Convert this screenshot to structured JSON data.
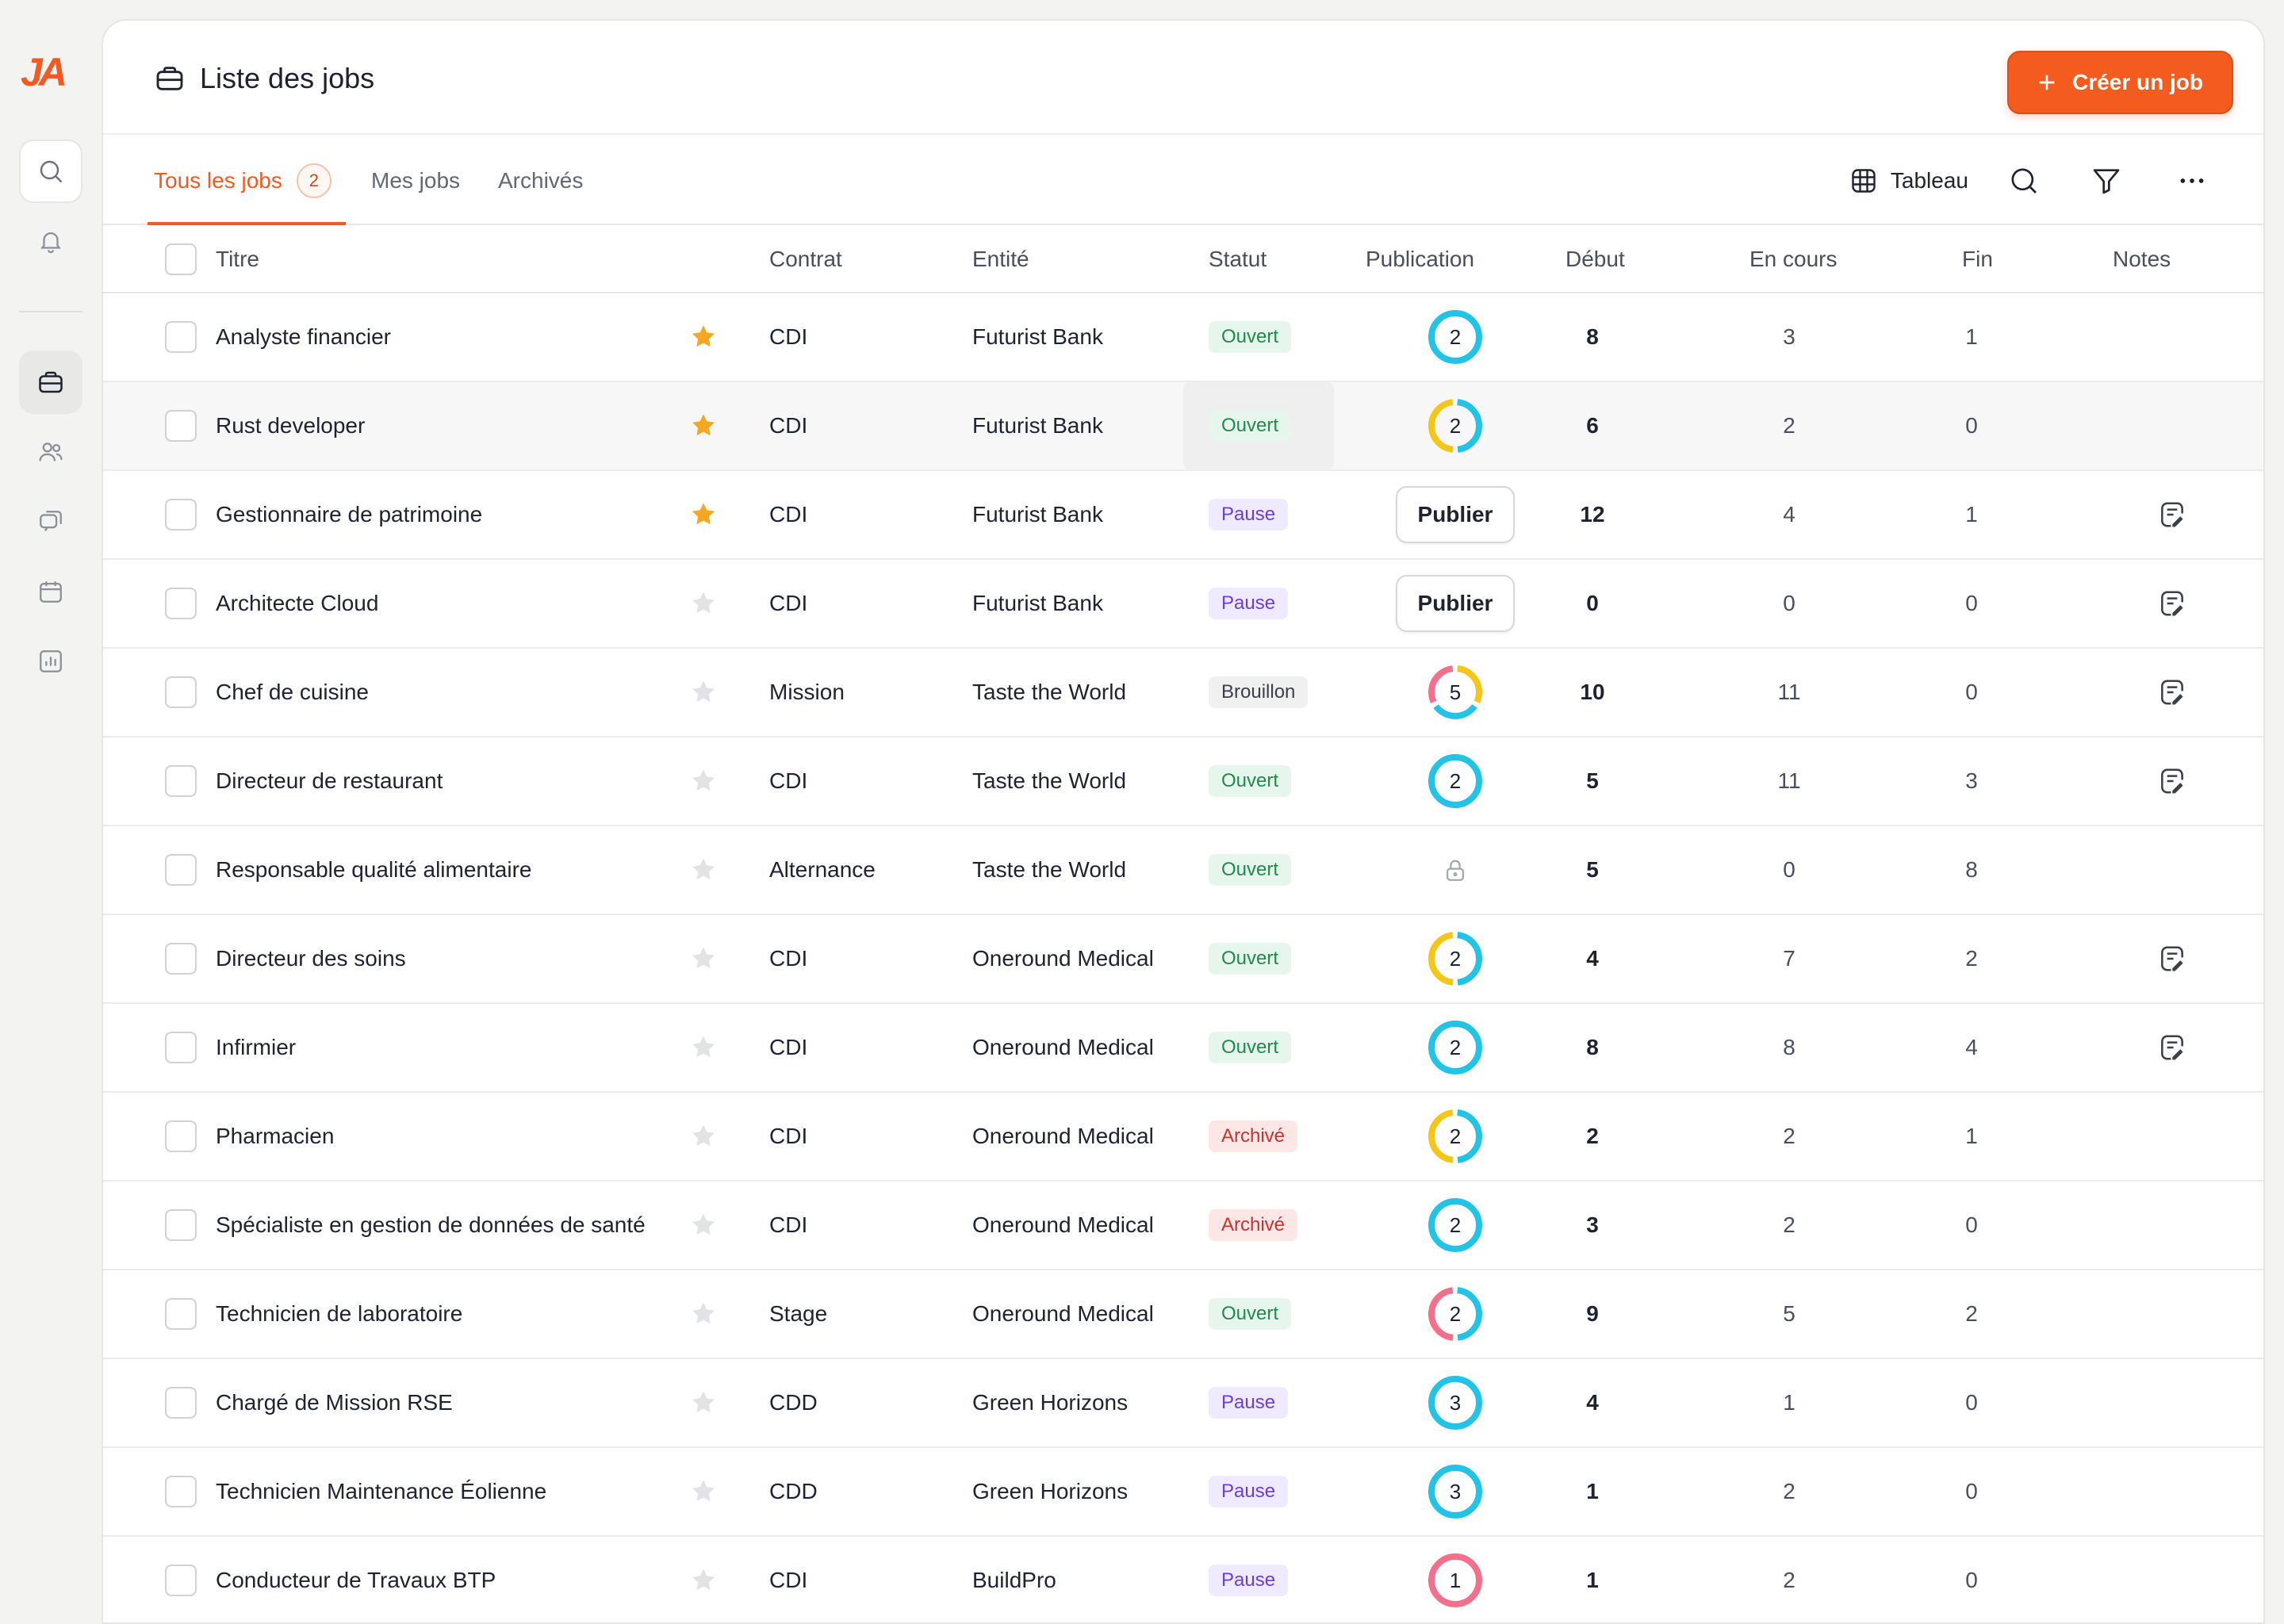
{
  "app": {
    "logo_text": "JA"
  },
  "sidebar": {
    "items": [
      {
        "name": "search",
        "icon": "search-icon"
      },
      {
        "name": "notifications",
        "icon": "bell-icon"
      },
      {
        "name": "jobs",
        "icon": "briefcase-icon",
        "active": true
      },
      {
        "name": "candidates",
        "icon": "users-icon"
      },
      {
        "name": "messages",
        "icon": "chat-icon"
      },
      {
        "name": "calendar",
        "icon": "calendar-icon"
      },
      {
        "name": "reports",
        "icon": "chart-icon"
      }
    ]
  },
  "header": {
    "title": "Liste des jobs",
    "create_label": "Créer un job"
  },
  "tabs": [
    {
      "label": "Tous les jobs",
      "count": "2",
      "active": true
    },
    {
      "label": "Mes jobs"
    },
    {
      "label": "Archivés"
    }
  ],
  "toolbar": {
    "view_label": "Tableau"
  },
  "columns": {
    "title": "Titre",
    "contract": "Contrat",
    "entity": "Entité",
    "status": "Statut",
    "publication": "Publication",
    "start": "Début",
    "in_progress": "En cours",
    "end": "Fin",
    "notes": "Notes"
  },
  "publish_label": "Publier",
  "colors": {
    "accent": "#f25a22",
    "ring_cyan": "#22c3e6",
    "ring_yellow": "#f5c518",
    "ring_pink": "#f4708a",
    "star": "#f5a623"
  },
  "rows": [
    {
      "title": "Analyste financier",
      "starred": true,
      "contract": "CDI",
      "entity": "Futurist Bank",
      "status": "Ouvert",
      "pub": {
        "type": "ring",
        "count": "2",
        "segments": [
          "cyan"
        ]
      },
      "start": "8",
      "in_progress": "3",
      "end": "1",
      "note": false
    },
    {
      "title": "Rust developer",
      "starred": true,
      "contract": "CDI",
      "entity": "Futurist Bank",
      "status": "Ouvert",
      "pub": {
        "type": "ring",
        "count": "2",
        "segments": [
          "yellow",
          "cyan"
        ]
      },
      "start": "6",
      "in_progress": "2",
      "end": "0",
      "note": false,
      "hover": true
    },
    {
      "title": "Gestionnaire de patrimoine",
      "starred": true,
      "contract": "CDI",
      "entity": "Futurist Bank",
      "status": "Pause",
      "pub": {
        "type": "button"
      },
      "start": "12",
      "in_progress": "4",
      "end": "1",
      "note": true
    },
    {
      "title": "Architecte Cloud",
      "starred": false,
      "contract": "CDI",
      "entity": "Futurist Bank",
      "status": "Pause",
      "pub": {
        "type": "button"
      },
      "start": "0",
      "in_progress": "0",
      "end": "0",
      "note": true
    },
    {
      "title": "Chef de cuisine",
      "starred": false,
      "contract": "Mission",
      "entity": "Taste the World",
      "status": "Brouillon",
      "pub": {
        "type": "ring",
        "count": "5",
        "segments": [
          "pink",
          "cyan",
          "yellow"
        ]
      },
      "start": "10",
      "in_progress": "11",
      "end": "0",
      "note": true
    },
    {
      "title": "Directeur de restaurant",
      "starred": false,
      "contract": "CDI",
      "entity": "Taste the World",
      "status": "Ouvert",
      "pub": {
        "type": "ring",
        "count": "2",
        "segments": [
          "cyan"
        ]
      },
      "start": "5",
      "in_progress": "11",
      "end": "3",
      "note": true
    },
    {
      "title": "Responsable qualité alimentaire",
      "starred": false,
      "contract": "Alternance",
      "entity": "Taste the World",
      "status": "Ouvert",
      "pub": {
        "type": "lock"
      },
      "start": "5",
      "in_progress": "0",
      "end": "8",
      "note": false
    },
    {
      "title": "Directeur des soins",
      "starred": false,
      "contract": "CDI",
      "entity": "Oneround Medical",
      "status": "Ouvert",
      "pub": {
        "type": "ring",
        "count": "2",
        "segments": [
          "yellow",
          "cyan"
        ]
      },
      "start": "4",
      "in_progress": "7",
      "end": "2",
      "note": true
    },
    {
      "title": "Infirmier",
      "starred": false,
      "contract": "CDI",
      "entity": "Oneround Medical",
      "status": "Ouvert",
      "pub": {
        "type": "ring",
        "count": "2",
        "segments": [
          "cyan"
        ]
      },
      "start": "8",
      "in_progress": "8",
      "end": "4",
      "note": true
    },
    {
      "title": "Pharmacien",
      "starred": false,
      "contract": "CDI",
      "entity": "Oneround Medical",
      "status": "Archivé",
      "pub": {
        "type": "ring",
        "count": "2",
        "segments": [
          "yellow",
          "cyan"
        ]
      },
      "start": "2",
      "in_progress": "2",
      "end": "1",
      "note": false
    },
    {
      "title": "Spécialiste en gestion de données de santé",
      "starred": false,
      "contract": "CDI",
      "entity": "Oneround Medical",
      "status": "Archivé",
      "pub": {
        "type": "ring",
        "count": "2",
        "segments": [
          "cyan"
        ]
      },
      "start": "3",
      "in_progress": "2",
      "end": "0",
      "note": false
    },
    {
      "title": "Technicien de laboratoire",
      "starred": false,
      "contract": "Stage",
      "entity": "Oneround Medical",
      "status": "Ouvert",
      "pub": {
        "type": "ring",
        "count": "2",
        "segments": [
          "pink",
          "cyan"
        ]
      },
      "start": "9",
      "in_progress": "5",
      "end": "2",
      "note": false
    },
    {
      "title": "Chargé de Mission RSE",
      "starred": false,
      "contract": "CDD",
      "entity": "Green Horizons",
      "status": "Pause",
      "pub": {
        "type": "ring",
        "count": "3",
        "segments": [
          "cyan"
        ]
      },
      "start": "4",
      "in_progress": "1",
      "end": "0",
      "note": false
    },
    {
      "title": "Technicien Maintenance Éolienne",
      "starred": false,
      "contract": "CDD",
      "entity": "Green Horizons",
      "status": "Pause",
      "pub": {
        "type": "ring",
        "count": "3",
        "segments": [
          "cyan"
        ]
      },
      "start": "1",
      "in_progress": "2",
      "end": "0",
      "note": false
    },
    {
      "title": "Conducteur de Travaux BTP",
      "starred": false,
      "contract": "CDI",
      "entity": "BuildPro",
      "status": "Pause",
      "pub": {
        "type": "ring",
        "count": "1",
        "segments": [
          "pink"
        ]
      },
      "start": "1",
      "in_progress": "2",
      "end": "0",
      "note": false
    }
  ]
}
